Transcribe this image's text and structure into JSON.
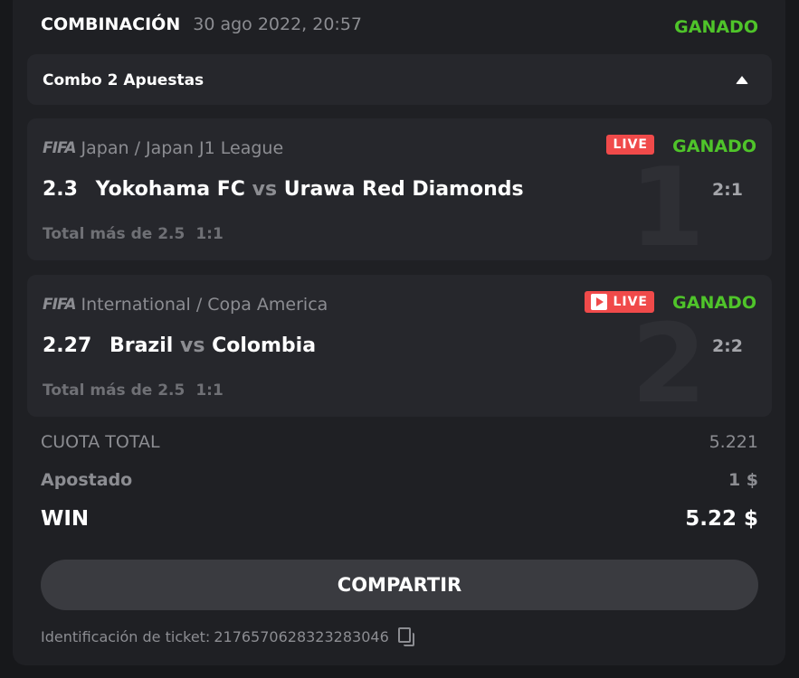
{
  "header": {
    "title": "COMBINACIÓN",
    "date": "30 ago 2022, 20:57",
    "status": "GANADO"
  },
  "combo": {
    "label": "Combo 2 Apuestas",
    "expanded_icon": "caret-up-icon"
  },
  "bets": [
    {
      "sport_icon": "fifa-icon",
      "league": "Japan / Japan J1 League",
      "odd": "2.3",
      "home": "Yokohama FC",
      "vs": "vs",
      "away": "Urawa Red Diamonds",
      "market": "Total más de 2.5",
      "market_score": "1:1",
      "score": "2:1",
      "index": "1",
      "live": "LIVE",
      "status": "GANADO"
    },
    {
      "sport_icon": "fifa-icon",
      "league": "International / Copa America",
      "odd": "2.27",
      "home": "Brazil",
      "vs": "vs",
      "away": "Colombia",
      "market": "Total más de 2.5",
      "market_score": "1:1",
      "score": "2:2",
      "index": "2",
      "live": "LIVE",
      "status": "GANADO"
    }
  ],
  "summary": {
    "total_odds_label": "CUOTA TOTAL",
    "total_odds": "5.221",
    "staked_label": "Apostado",
    "staked": "1 $",
    "win_label": "WIN",
    "win": "5.22 $"
  },
  "share_button": "COMPARTIR",
  "ticket": {
    "label": "Identificación de ticket:",
    "id": "2176570628323283046"
  },
  "fifa_text": "FIFA",
  "colors": {
    "won": "#4fc42a",
    "live": "#f04a4a",
    "card": "#1f2024",
    "panel": "#26272c"
  }
}
